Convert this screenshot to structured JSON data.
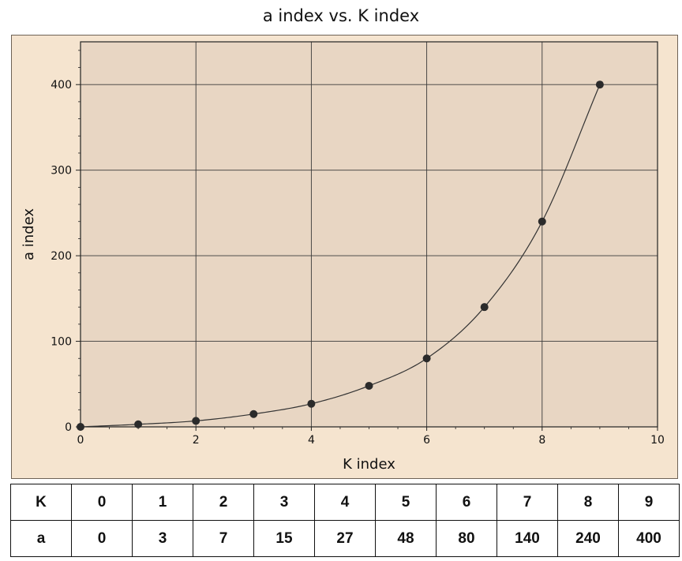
{
  "chart_data": {
    "type": "scatter",
    "title": "a index vs. K index",
    "xlabel": "K index",
    "ylabel": "a index",
    "xlim": [
      0,
      10
    ],
    "ylim": [
      0,
      450
    ],
    "x_ticks": [
      0,
      2,
      4,
      6,
      8,
      10
    ],
    "y_ticks": [
      0,
      100,
      200,
      300,
      400
    ],
    "grid": true,
    "smooth_curve": true,
    "series": [
      {
        "x": [
          0,
          1,
          2,
          3,
          4,
          5,
          6,
          7,
          8,
          9
        ],
        "y": [
          0,
          3,
          7,
          15,
          27,
          48,
          80,
          140,
          240,
          400
        ]
      }
    ],
    "colors": {
      "panel_bg": "#f5e4cf",
      "plot_bg": "#e8d6c3",
      "marker": "#2b2b2b",
      "line": "#333333"
    }
  },
  "table": {
    "rows": [
      {
        "label": "K",
        "values": [
          "0",
          "1",
          "2",
          "3",
          "4",
          "5",
          "6",
          "7",
          "8",
          "9"
        ]
      },
      {
        "label": "a",
        "values": [
          "0",
          "3",
          "7",
          "15",
          "27",
          "48",
          "80",
          "140",
          "240",
          "400"
        ]
      }
    ]
  }
}
